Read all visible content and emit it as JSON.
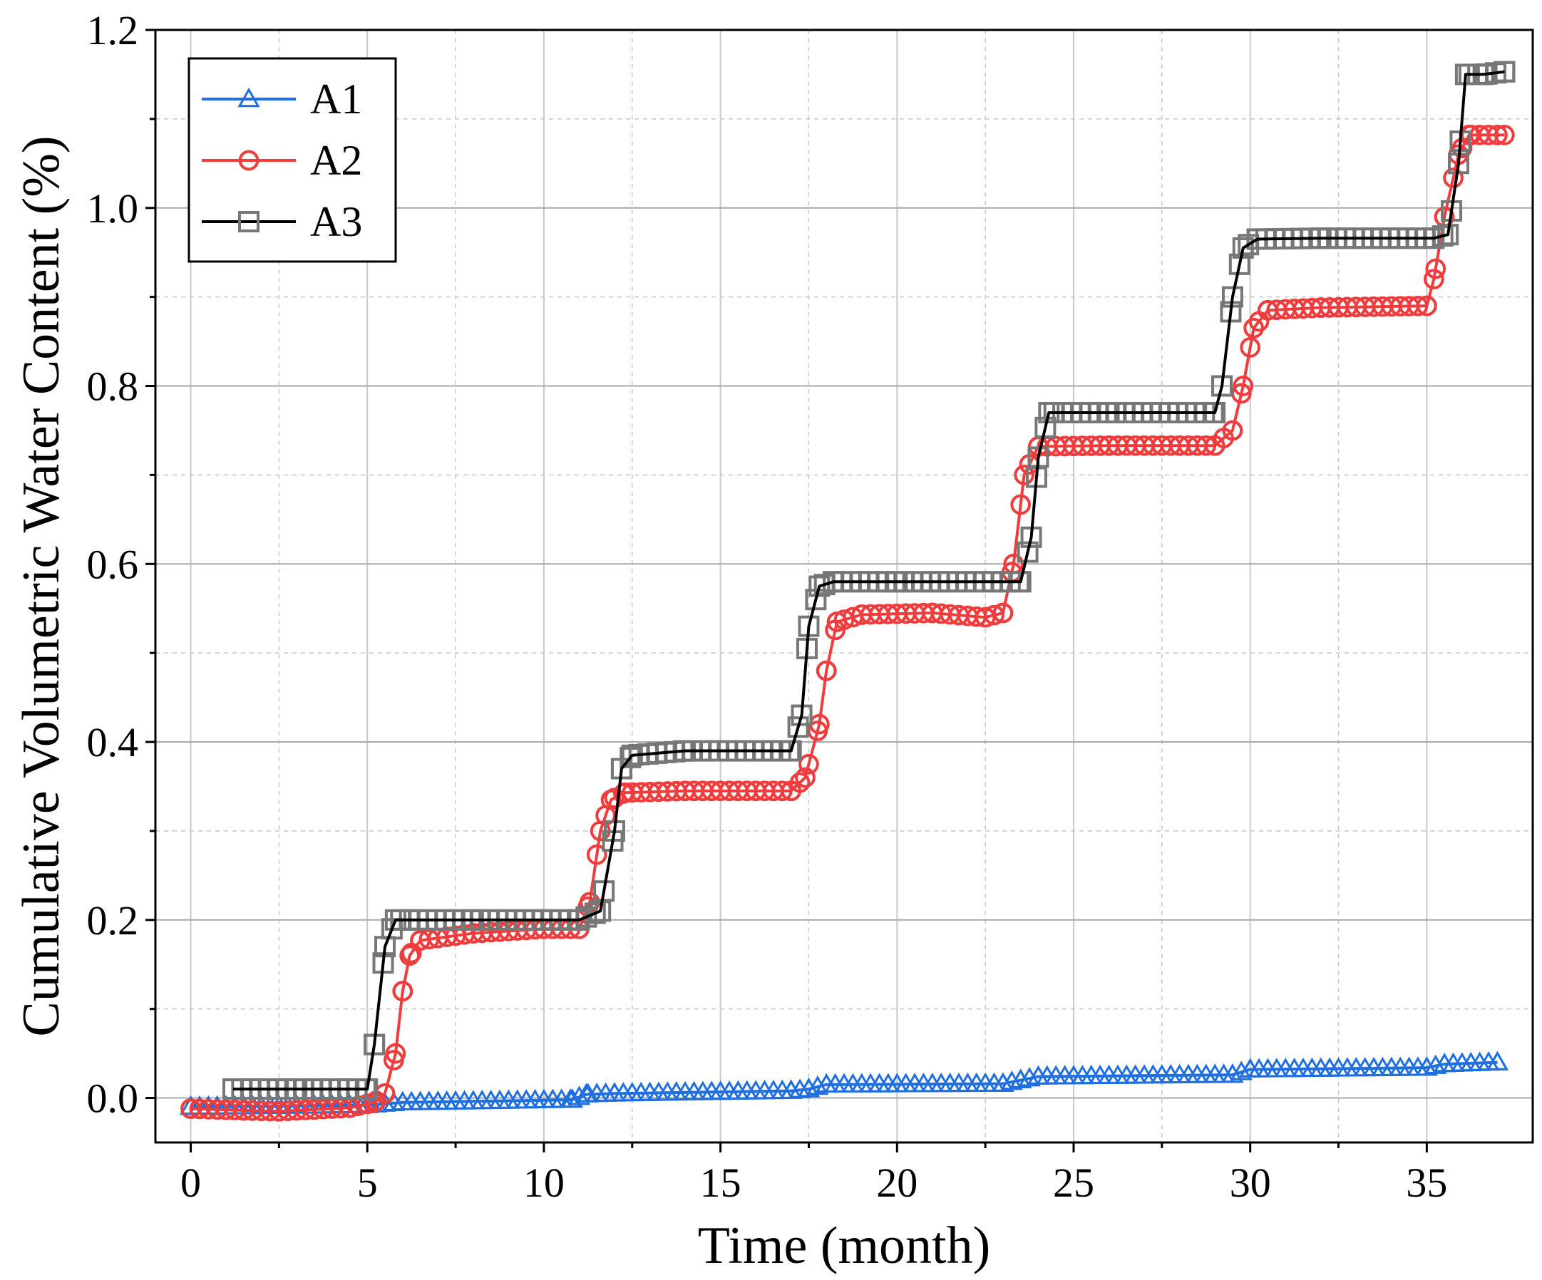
{
  "chart_data": {
    "type": "line",
    "title": "",
    "xlabel": "Time (month)",
    "ylabel": "Cumulative Volumetric Water Content (%)",
    "xlim": [
      -1,
      38
    ],
    "ylim": [
      -0.05,
      1.2
    ],
    "xticks": [
      0,
      5,
      10,
      15,
      20,
      25,
      30,
      35
    ],
    "yticks": [
      0.0,
      0.2,
      0.4,
      0.6,
      0.8,
      1.0,
      1.2
    ],
    "xtick_labels": [
      "0",
      "5",
      "10",
      "15",
      "20",
      "25",
      "30",
      "35"
    ],
    "ytick_labels": [
      "0.0",
      "0.2",
      "0.4",
      "0.6",
      "0.8",
      "1.0",
      "1.2"
    ],
    "grid": true,
    "legend_position": "top-left",
    "series": [
      {
        "name": "A1",
        "color": "#1f6fe0",
        "marker": "triangle",
        "points": [
          [
            0,
            -0.01
          ],
          [
            5,
            -0.008
          ],
          [
            6,
            -0.005
          ],
          [
            10.8,
            -0.002
          ],
          [
            11.2,
            0.004
          ],
          [
            12,
            0.005
          ],
          [
            17,
            0.008
          ],
          [
            17.5,
            0.01
          ],
          [
            18,
            0.015
          ],
          [
            23,
            0.016
          ],
          [
            23.5,
            0.02
          ],
          [
            24,
            0.024
          ],
          [
            29.5,
            0.026
          ],
          [
            30,
            0.032
          ],
          [
            35,
            0.034
          ],
          [
            35.5,
            0.038
          ],
          [
            37,
            0.04
          ]
        ]
      },
      {
        "name": "A2",
        "color": "#f03c3c",
        "marker": "circle",
        "points": [
          [
            0,
            -0.012
          ],
          [
            1.5,
            -0.014
          ],
          [
            2.5,
            -0.015
          ],
          [
            3.5,
            -0.013
          ],
          [
            4.5,
            -0.011
          ],
          [
            5.2,
            -0.005
          ],
          [
            5.5,
            0.005
          ],
          [
            5.8,
            0.05
          ],
          [
            6.0,
            0.12
          ],
          [
            6.2,
            0.16
          ],
          [
            6.5,
            0.177
          ],
          [
            8,
            0.185
          ],
          [
            10,
            0.19
          ],
          [
            11,
            0.19
          ],
          [
            11.3,
            0.22
          ],
          [
            11.6,
            0.3
          ],
          [
            11.9,
            0.335
          ],
          [
            12.3,
            0.343
          ],
          [
            14,
            0.345
          ],
          [
            17,
            0.345
          ],
          [
            17.4,
            0.36
          ],
          [
            17.8,
            0.42
          ],
          [
            18.0,
            0.48
          ],
          [
            18.3,
            0.535
          ],
          [
            19,
            0.543
          ],
          [
            21,
            0.545
          ],
          [
            22.5,
            0.54
          ],
          [
            23,
            0.545
          ],
          [
            23.3,
            0.6
          ],
          [
            23.6,
            0.7
          ],
          [
            24,
            0.732
          ],
          [
            26,
            0.733
          ],
          [
            29,
            0.733
          ],
          [
            29.5,
            0.75
          ],
          [
            29.8,
            0.8
          ],
          [
            30.1,
            0.865
          ],
          [
            30.5,
            0.885
          ],
          [
            32,
            0.888
          ],
          [
            35,
            0.89
          ],
          [
            35.2,
            0.92
          ],
          [
            35.5,
            0.99
          ],
          [
            35.9,
            1.06
          ],
          [
            36.2,
            1.082
          ],
          [
            37.2,
            1.082
          ]
        ]
      },
      {
        "name": "A3",
        "color": "#000000",
        "marker": "square",
        "points": [
          [
            1.2,
            0.01
          ],
          [
            3,
            0.01
          ],
          [
            5,
            0.01
          ],
          [
            5.2,
            0.06
          ],
          [
            5.5,
            0.17
          ],
          [
            5.8,
            0.2
          ],
          [
            6.2,
            0.2
          ],
          [
            8,
            0.2
          ],
          [
            11,
            0.2
          ],
          [
            11.6,
            0.21
          ],
          [
            12,
            0.3
          ],
          [
            12.2,
            0.37
          ],
          [
            12.5,
            0.385
          ],
          [
            14,
            0.39
          ],
          [
            17,
            0.39
          ],
          [
            17.3,
            0.43
          ],
          [
            17.5,
            0.53
          ],
          [
            17.8,
            0.575
          ],
          [
            18.2,
            0.58
          ],
          [
            20,
            0.58
          ],
          [
            23.5,
            0.58
          ],
          [
            23.8,
            0.63
          ],
          [
            24.0,
            0.72
          ],
          [
            24.3,
            0.77
          ],
          [
            26,
            0.77
          ],
          [
            29,
            0.77
          ],
          [
            29.2,
            0.8
          ],
          [
            29.5,
            0.9
          ],
          [
            29.8,
            0.955
          ],
          [
            30.2,
            0.965
          ],
          [
            32,
            0.966
          ],
          [
            35.2,
            0.966
          ],
          [
            35.6,
            0.97
          ],
          [
            35.9,
            1.05
          ],
          [
            36.1,
            1.15
          ],
          [
            36.6,
            1.15
          ],
          [
            37.2,
            1.153
          ]
        ]
      }
    ]
  }
}
